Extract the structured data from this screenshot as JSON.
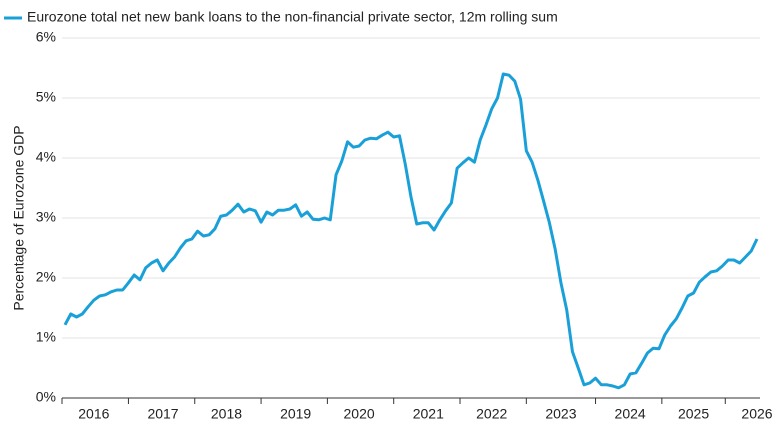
{
  "chart_data": {
    "type": "line",
    "title": "Eurozone total net new bank loans to the non-financial private sector, 12m rolling sum",
    "y_label": "Percentage of Eurozone GDP",
    "categories": [
      null,
      null,
      null,
      null,
      null,
      "2016",
      null,
      null,
      null,
      null,
      null,
      null,
      null,
      null,
      null,
      null,
      null,
      "2017",
      null,
      null,
      null,
      null,
      null,
      null,
      null,
      null,
      null,
      null,
      "2018",
      null,
      null,
      null,
      null,
      null,
      null,
      null,
      null,
      null,
      null,
      null,
      "2019",
      null,
      null,
      null,
      null,
      null,
      null,
      null,
      null,
      null,
      null,
      "2020",
      null,
      null,
      null,
      null,
      null,
      null,
      null,
      null,
      null,
      null,
      null,
      "2021",
      null,
      null,
      null,
      null,
      null,
      null,
      null,
      null,
      null,
      null,
      "2022",
      null,
      null,
      null,
      null,
      null,
      null,
      null,
      null,
      null,
      null,
      null,
      "2023",
      null,
      null,
      null,
      null,
      null,
      null,
      null,
      null,
      null,
      null,
      null,
      "2024",
      null,
      null,
      null,
      null,
      null,
      null,
      null,
      null,
      null,
      null,
      "2025",
      null,
      null,
      null,
      null,
      null,
      null,
      null,
      null,
      null,
      null,
      "2026"
    ],
    "series": [
      {
        "name": "Eurozone total net new bank loans to the non-financial private sector, 12m rolling sum",
        "color": "#1aa0d8",
        "values": [
          1.22,
          1.4,
          1.35,
          1.4,
          1.52,
          1.63,
          1.7,
          1.72,
          1.77,
          1.8,
          1.8,
          1.92,
          2.05,
          1.97,
          2.17,
          2.25,
          2.3,
          2.12,
          2.25,
          2.35,
          2.5,
          2.62,
          2.65,
          2.78,
          2.7,
          2.72,
          2.82,
          3.03,
          3.05,
          3.13,
          3.23,
          3.1,
          3.15,
          3.12,
          2.93,
          3.1,
          3.05,
          3.13,
          3.13,
          3.15,
          3.22,
          3.03,
          3.1,
          2.98,
          2.97,
          3.0,
          2.97,
          3.72,
          3.95,
          4.27,
          4.18,
          4.2,
          4.3,
          4.33,
          4.32,
          4.38,
          4.43,
          4.35,
          4.37,
          3.9,
          3.35,
          2.9,
          2.92,
          2.92,
          2.8,
          2.97,
          3.12,
          3.25,
          3.83,
          3.92,
          4.0,
          3.93,
          4.3,
          4.55,
          4.82,
          5.0,
          5.4,
          5.38,
          5.28,
          4.98,
          4.12,
          3.93,
          3.63,
          3.28,
          2.92,
          2.48,
          1.92,
          1.47,
          0.77,
          0.5,
          0.22,
          0.25,
          0.33,
          0.22,
          0.22,
          0.2,
          0.17,
          0.22,
          0.4,
          0.42,
          0.58,
          0.75,
          0.83,
          0.82,
          1.05,
          1.2,
          1.32,
          1.5,
          1.7,
          1.75,
          1.93,
          2.02,
          2.1,
          2.12,
          2.2,
          2.3,
          2.3,
          2.25,
          2.35,
          2.45,
          2.65
        ]
      }
    ],
    "ylim": [
      0,
      6
    ],
    "yticks": [
      {
        "value": 0,
        "label": "0%"
      },
      {
        "value": 1,
        "label": "1%"
      },
      {
        "value": 2,
        "label": "2%"
      },
      {
        "value": 3,
        "label": "3%"
      },
      {
        "value": 4,
        "label": "4%"
      },
      {
        "value": 5,
        "label": "5%"
      },
      {
        "value": 6,
        "label": "6%"
      }
    ],
    "grid": true
  }
}
